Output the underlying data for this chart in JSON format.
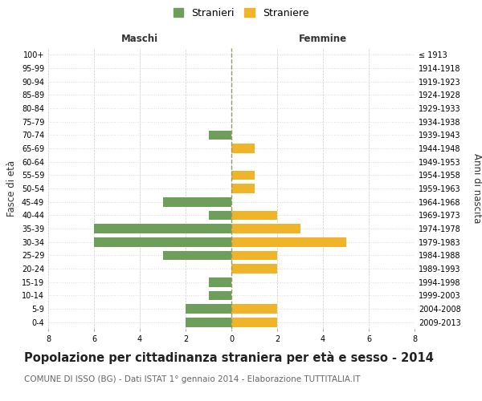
{
  "age_groups": [
    "0-4",
    "5-9",
    "10-14",
    "15-19",
    "20-24",
    "25-29",
    "30-34",
    "35-39",
    "40-44",
    "45-49",
    "50-54",
    "55-59",
    "60-64",
    "65-69",
    "70-74",
    "75-79",
    "80-84",
    "85-89",
    "90-94",
    "95-99",
    "100+"
  ],
  "birth_years": [
    "2009-2013",
    "2004-2008",
    "1999-2003",
    "1994-1998",
    "1989-1993",
    "1984-1988",
    "1979-1983",
    "1974-1978",
    "1969-1973",
    "1964-1968",
    "1959-1963",
    "1954-1958",
    "1949-1953",
    "1944-1948",
    "1939-1943",
    "1934-1938",
    "1929-1933",
    "1924-1928",
    "1919-1923",
    "1914-1918",
    "≤ 1913"
  ],
  "maschi": [
    2,
    2,
    1,
    1,
    0,
    3,
    6,
    6,
    1,
    3,
    0,
    0,
    0,
    0,
    1,
    0,
    0,
    0,
    0,
    0,
    0
  ],
  "femmine": [
    2,
    2,
    0,
    0,
    2,
    2,
    5,
    3,
    2,
    0,
    1,
    1,
    0,
    1,
    0,
    0,
    0,
    0,
    0,
    0,
    0
  ],
  "maschi_color": "#6d9e5a",
  "femmine_color": "#f0b429",
  "bg_color": "#ffffff",
  "grid_color": "#cccccc",
  "grid_y_color": "#dddddd",
  "center_line_color": "#999966",
  "title": "Popolazione per cittadinanza straniera per età e sesso - 2014",
  "subtitle": "COMUNE DI ISSO (BG) - Dati ISTAT 1° gennaio 2014 - Elaborazione TUTTITALIA.IT",
  "ylabel_left": "Fasce di età",
  "ylabel_right": "Anni di nascita",
  "xlabel_left": "Maschi",
  "xlabel_right": "Femmine",
  "legend_maschi": "Stranieri",
  "legend_femmine": "Straniere",
  "xlim": 8,
  "title_fontsize": 10.5,
  "subtitle_fontsize": 7.5,
  "tick_fontsize": 7,
  "label_fontsize": 8.5,
  "bar_height": 0.7
}
